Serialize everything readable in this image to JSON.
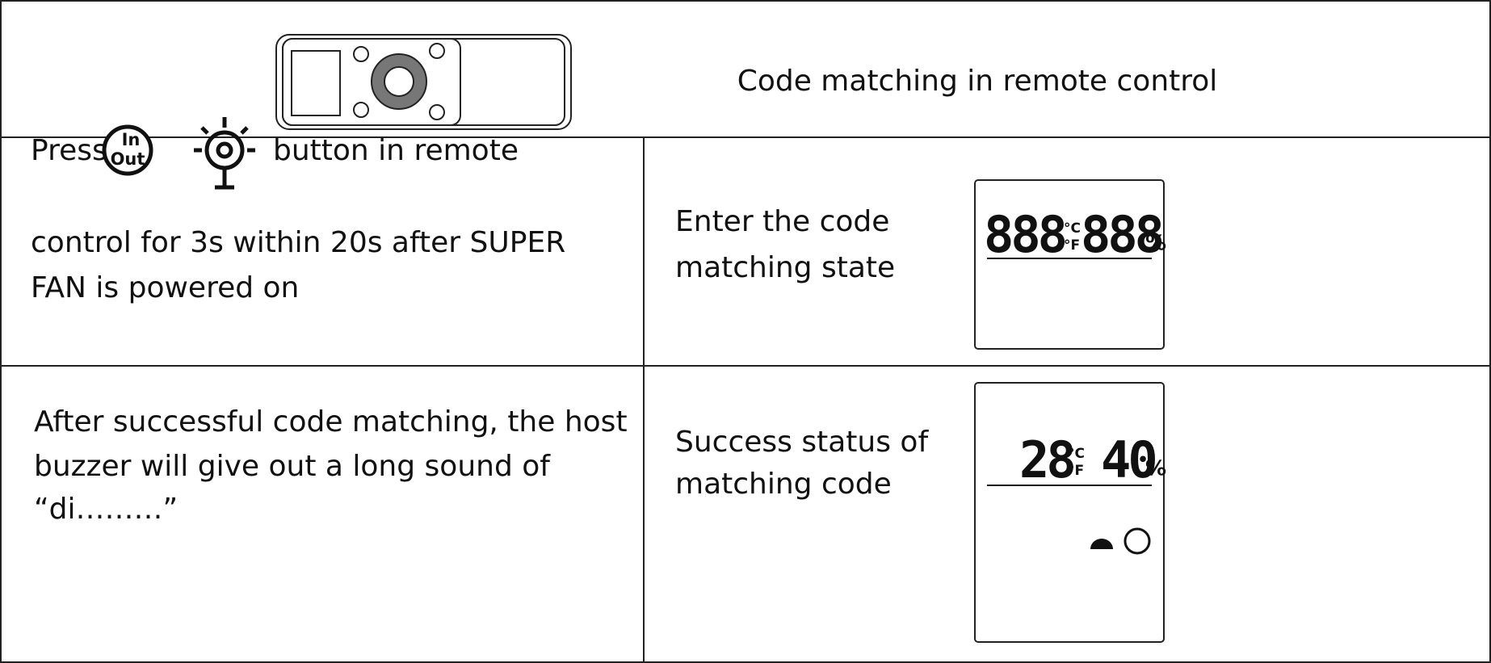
{
  "header": {
    "title": "Code matching in remote control"
  },
  "steps": [
    {
      "instruction": {
        "press": "Press",
        "after_icons": "button in remote",
        "lines": [
          "control for 3s within 20s after SUPER",
          "FAN is powered on"
        ]
      },
      "icon": {
        "top": "In",
        "bottom": "Out"
      },
      "result": [
        "Enter the code",
        "matching state"
      ],
      "display": {
        "left": "888",
        "unit_c": "°C",
        "unit_f": "°F",
        "right": "888",
        "percent": "%"
      }
    },
    {
      "instruction": {
        "lines": [
          "After successful code matching, the host",
          "buzzer will give out a long sound of",
          "“di………”"
        ]
      },
      "result": [
        "Success status of",
        "matching code"
      ],
      "display": {
        "left": "28",
        "unit_c": "°C",
        "unit_f": "°F",
        "right": "40",
        "percent": "%"
      }
    }
  ]
}
